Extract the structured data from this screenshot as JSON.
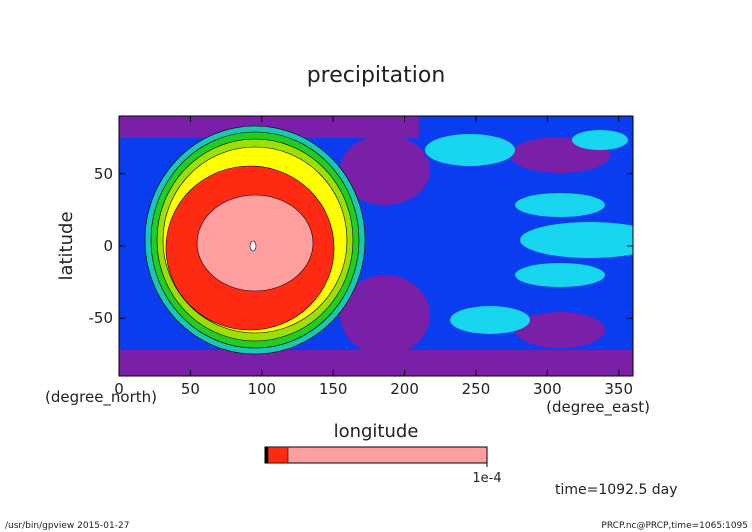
{
  "chart_data": {
    "type": "contour",
    "title": "precipitation",
    "x_label": "longitude",
    "x_units": "(degree_east)",
    "y_label": "latitude",
    "y_units": "(degree_north)",
    "xlim": [
      0,
      360
    ],
    "xticks": [
      0,
      50,
      100,
      150,
      200,
      250,
      300,
      350
    ],
    "ylim": [
      -90,
      90
    ],
    "yticks": [
      -50,
      0,
      50
    ],
    "colorbar_ticks": [
      {
        "value": 0.0001,
        "label": "1e-4"
      }
    ],
    "annotation": "time=1092.5 day",
    "footer_left": "/usr/bin/gpview  2015-01-27",
    "footer_right": "PRCP.nc@PRCP,time=1065:1095"
  }
}
